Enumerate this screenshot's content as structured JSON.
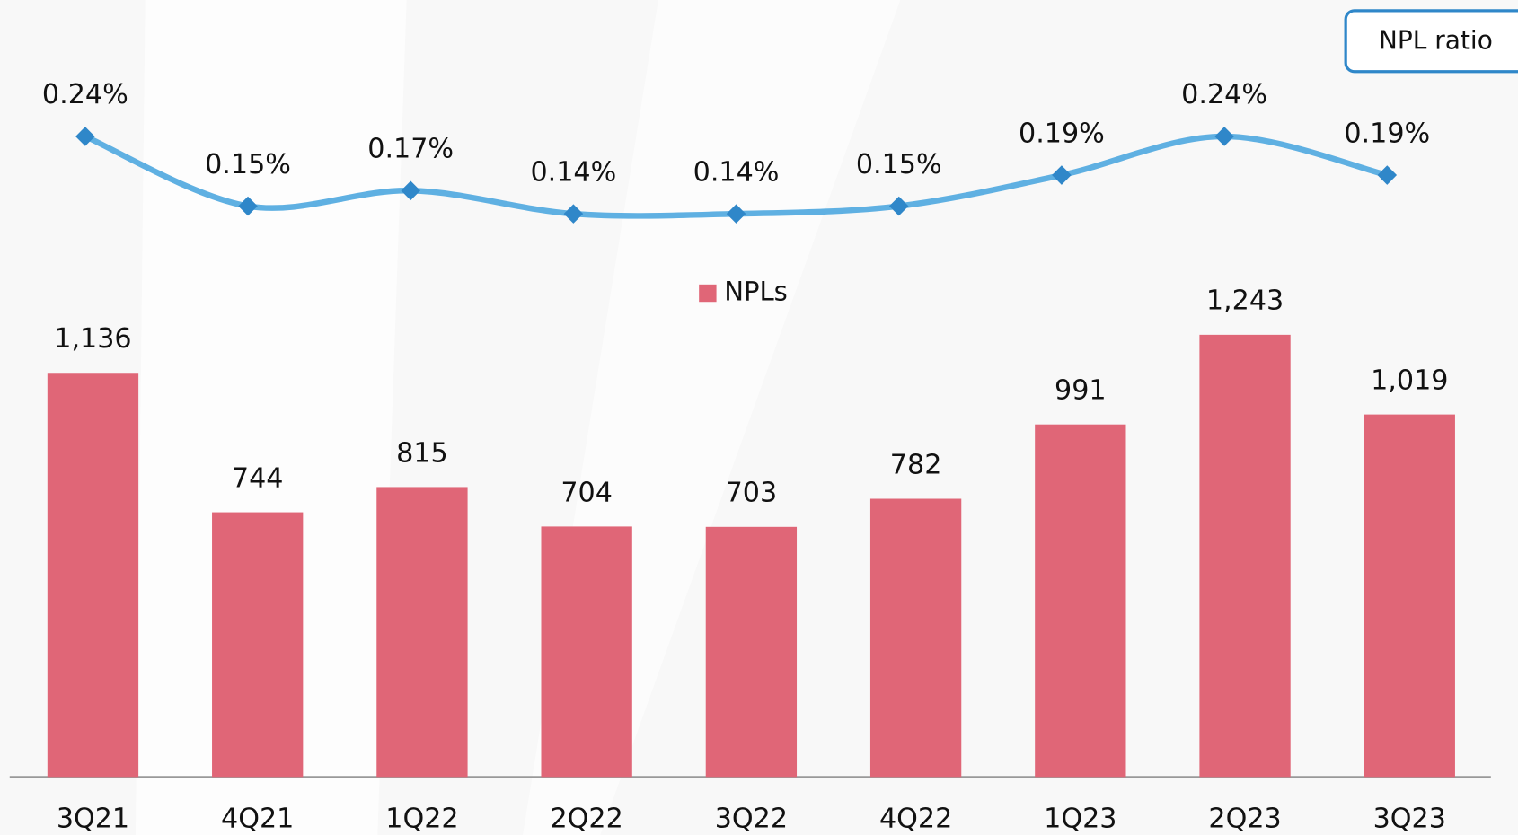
{
  "chart_data": {
    "type": "bar",
    "categories": [
      "3Q21",
      "4Q21",
      "1Q22",
      "2Q22",
      "3Q22",
      "4Q22",
      "1Q23",
      "2Q23",
      "3Q23"
    ],
    "series": [
      {
        "name": "NPLs",
        "type": "bar",
        "color": "#e06677",
        "values": [
          1136,
          744,
          815,
          704,
          703,
          782,
          991,
          1243,
          1019
        ],
        "value_labels": [
          "1,136",
          "744",
          "815",
          "704",
          "703",
          "782",
          "991",
          "1,243",
          "1,019"
        ]
      },
      {
        "name": "NPL ratio",
        "type": "line",
        "axis": "y2",
        "color": "#5fb0e2",
        "marker_color": "#2f87c9",
        "values": [
          0.24,
          0.15,
          0.17,
          0.14,
          0.14,
          0.15,
          0.19,
          0.24,
          0.19
        ],
        "value_labels": [
          "0.24%",
          "0.15%",
          "0.17%",
          "0.14%",
          "0.14%",
          "0.15%",
          "0.19%",
          "0.24%",
          "0.19%"
        ]
      }
    ]
  }
}
